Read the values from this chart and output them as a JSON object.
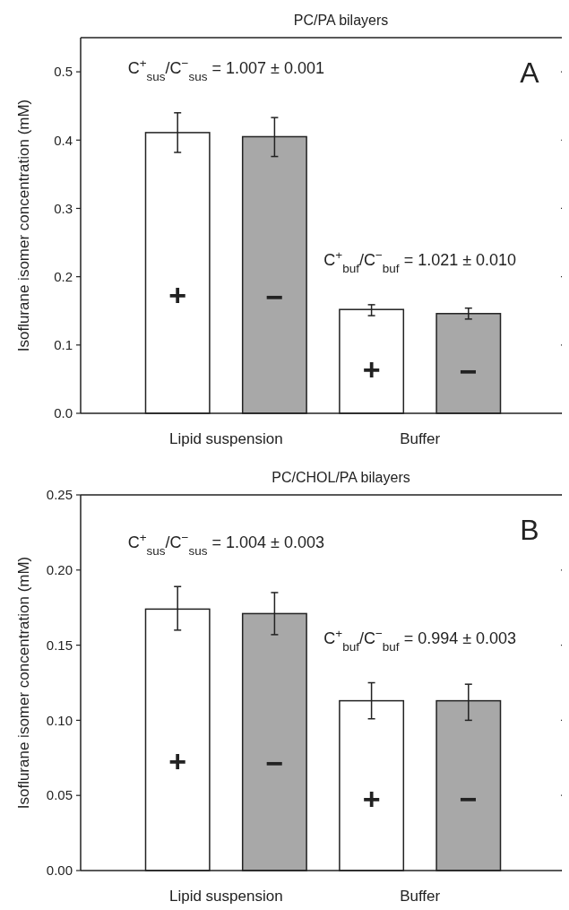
{
  "chart_data": [
    {
      "type": "bar",
      "title": "PC/PA bilayers",
      "ylabel": "Isoflurane isomer concentration (mM)",
      "categories": [
        "Lipid suspension",
        "Buffer"
      ],
      "series": [
        {
          "name": "+",
          "color": "#ffffff",
          "values": [
            0.411,
            0.152
          ],
          "errors": [
            [
              0.382,
              0.44
            ],
            [
              0.143,
              0.159
            ]
          ]
        },
        {
          "name": "−",
          "color": "#a8a8a8",
          "values": [
            0.405,
            0.146
          ],
          "errors": [
            [
              0.376,
              0.433
            ],
            [
              0.138,
              0.154
            ]
          ]
        }
      ],
      "ylim": [
        0,
        0.55
      ],
      "yticks": [
        {
          "value": 0,
          "label": "0.0"
        },
        0.1,
        0.2,
        0.3,
        0.4,
        0.5
      ],
      "annotations": [
        "C$^{+}$$_{sus}$/C$^{−}$$_{sus}$ = 1.007 ± 0.001",
        "C$^{+}$$_{buf}$/C$^{−}$$_{buf}$ = 1.021 ± 0.010",
        "A"
      ],
      "grid": false,
      "legend": false
    },
    {
      "type": "bar",
      "title": "PC/CHOL/PA bilayers",
      "ylabel": "Isoflurane isomer concentration (mM)",
      "categories": [
        "Lipid suspension",
        "Buffer"
      ],
      "series": [
        {
          "name": "+",
          "color": "#ffffff",
          "values": [
            0.174,
            0.113
          ],
          "errors": [
            [
              0.16,
              0.189
            ],
            [
              0.101,
              0.125
            ]
          ]
        },
        {
          "name": "−",
          "color": "#a8a8a8",
          "values": [
            0.171,
            0.113
          ],
          "errors": [
            [
              0.157,
              0.185
            ],
            [
              0.1,
              0.124
            ]
          ]
        }
      ],
      "ylim": [
        0,
        0.25
      ],
      "yticks": [
        {
          "value": 0,
          "label": "0.00"
        },
        {
          "value": 0.05,
          "label": "0.05"
        },
        {
          "value": 0.1,
          "label": "0.10"
        },
        {
          "value": 0.15,
          "label": "0.15"
        },
        {
          "value": 0.2,
          "label": "0.20"
        },
        {
          "value": 0.25,
          "label": "0.25"
        }
      ],
      "annotations": [
        "C$^{+}$$_{sus}$/C$^{−}$$_{sus}$ = 1.004 ± 0.003",
        "C$^{+}$$_{buf}$/C$^{−}$$_{buf}$ = 0.994 ± 0.003",
        "B"
      ],
      "grid": false,
      "legend": false
    }
  ]
}
